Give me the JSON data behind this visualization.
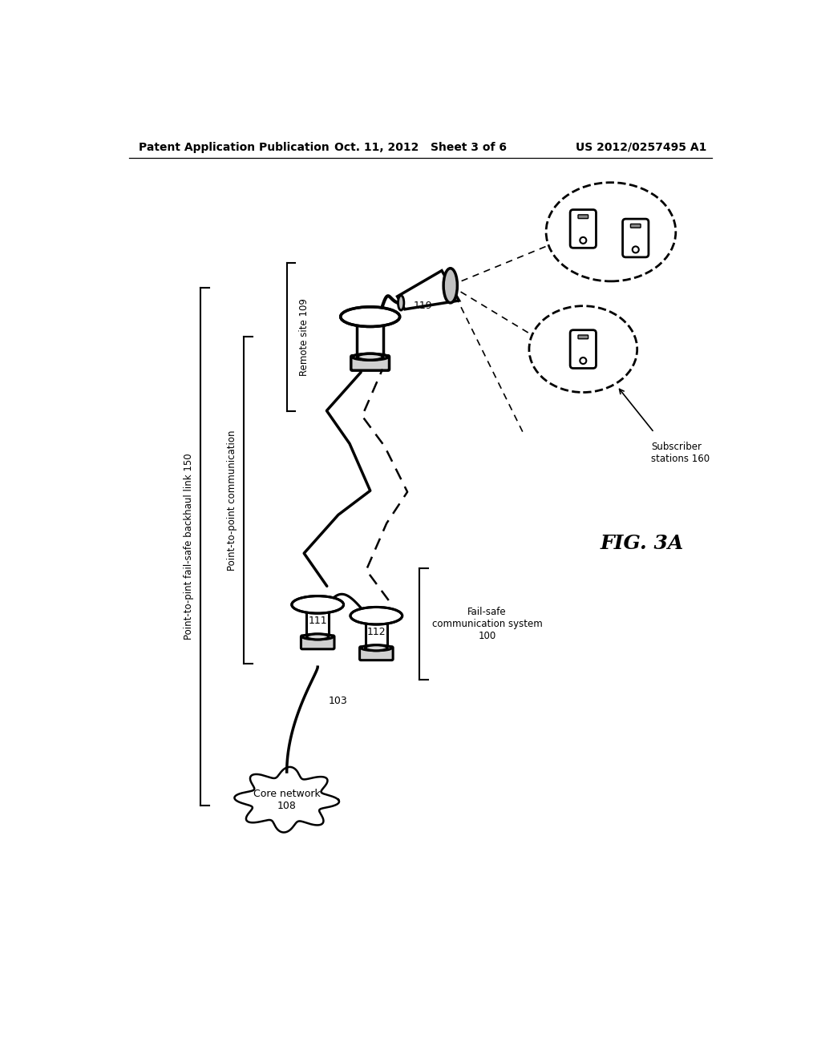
{
  "title_left": "Patent Application Publication",
  "title_center": "Oct. 11, 2012   Sheet 3 of 6",
  "title_right": "US 2012/0257495 A1",
  "fig_label": "FIG. 3A",
  "bg": "#ffffff",
  "label_outer": "Point-to-pint fail-safe backhaul link 150",
  "label_inner": "Point-to-point communication",
  "label_remote": "Remote site 109",
  "label_failsafe": "Fail-safe\ncommunication system\n100",
  "label_subscriber": "Subscriber\nstations 160",
  "label_core": "Core network\n108",
  "l103": "103",
  "l111": "111",
  "l112": "112",
  "l119": "119"
}
